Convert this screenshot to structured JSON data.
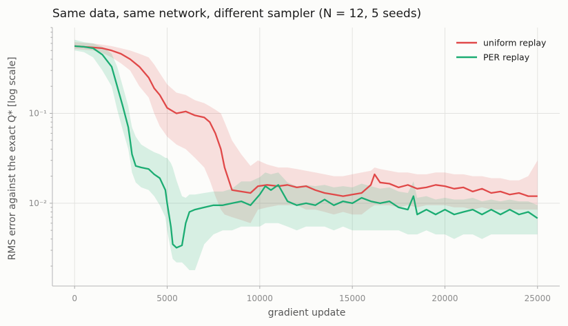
{
  "chart_data": {
    "type": "line",
    "title": "Same data, same network, different sampler (N = 12, 5 seeds)",
    "xlabel": "gradient update",
    "ylabel": "RMS error against the exact Q*  [log scale]",
    "xlim": [
      -1200,
      26200
    ],
    "ylim": [
      0.0012,
      0.9
    ],
    "yscale": "log",
    "x_ticks": [
      0,
      5000,
      10000,
      15000,
      20000,
      25000
    ],
    "y_ticks": [
      {
        "value": 0.1,
        "label": "10⁻¹"
      },
      {
        "value": 0.01,
        "label": "10⁻²"
      }
    ],
    "grid": true,
    "legend_position": "top-right",
    "series": [
      {
        "name": "uniform replay",
        "color": "#e04848",
        "x": [
          0,
          1000,
          1500,
          2000,
          2500,
          3000,
          3500,
          4000,
          4300,
          4600,
          5000,
          5500,
          6000,
          6500,
          7000,
          7300,
          7600,
          7900,
          8100,
          8500,
          9000,
          9500,
          9900,
          10400,
          11000,
          11500,
          12000,
          12500,
          13000,
          13500,
          14000,
          14500,
          15000,
          15500,
          16000,
          16200,
          16500,
          17000,
          17500,
          18000,
          18500,
          19000,
          19500,
          20000,
          20500,
          21000,
          21500,
          22000,
          22500,
          23000,
          23500,
          24000,
          24500,
          25000
        ],
        "y": [
          0.56,
          0.54,
          0.53,
          0.5,
          0.46,
          0.4,
          0.33,
          0.25,
          0.19,
          0.16,
          0.115,
          0.1,
          0.105,
          0.095,
          0.09,
          0.08,
          0.06,
          0.04,
          0.025,
          0.014,
          0.0135,
          0.013,
          0.0155,
          0.016,
          0.0155,
          0.016,
          0.015,
          0.0155,
          0.014,
          0.013,
          0.0125,
          0.012,
          0.0125,
          0.013,
          0.016,
          0.021,
          0.017,
          0.0165,
          0.015,
          0.016,
          0.0145,
          0.015,
          0.016,
          0.0155,
          0.0145,
          0.015,
          0.0135,
          0.0145,
          0.013,
          0.0135,
          0.0125,
          0.013,
          0.012,
          0.012
        ],
        "band_low": [
          0.52,
          0.5,
          0.47,
          0.42,
          0.36,
          0.3,
          0.2,
          0.15,
          0.1,
          0.072,
          0.055,
          0.045,
          0.04,
          0.032,
          0.025,
          0.018,
          0.012,
          0.0085,
          0.0075,
          0.007,
          0.0065,
          0.006,
          0.0085,
          0.009,
          0.0095,
          0.0095,
          0.0095,
          0.0085,
          0.0085,
          0.008,
          0.0075,
          0.008,
          0.0075,
          0.0075,
          0.009,
          0.0095,
          0.0095,
          0.0095,
          0.009,
          0.0095,
          0.009,
          0.0095,
          0.0095,
          0.0095,
          0.009,
          0.009,
          0.0085,
          0.009,
          0.0085,
          0.0085,
          0.0085,
          0.0085,
          0.0085,
          0.0085
        ],
        "band_high": [
          0.62,
          0.6,
          0.58,
          0.56,
          0.53,
          0.5,
          0.46,
          0.42,
          0.35,
          0.28,
          0.21,
          0.17,
          0.16,
          0.14,
          0.13,
          0.12,
          0.11,
          0.1,
          0.08,
          0.05,
          0.035,
          0.026,
          0.03,
          0.027,
          0.025,
          0.025,
          0.024,
          0.023,
          0.022,
          0.021,
          0.02,
          0.02,
          0.021,
          0.022,
          0.023,
          0.025,
          0.024,
          0.023,
          0.022,
          0.022,
          0.021,
          0.021,
          0.022,
          0.022,
          0.021,
          0.021,
          0.02,
          0.02,
          0.019,
          0.019,
          0.018,
          0.018,
          0.02,
          0.03
        ]
      },
      {
        "name": "PER replay",
        "color": "#1bac72",
        "x": [
          0,
          500,
          1000,
          1500,
          2000,
          2300,
          2600,
          2900,
          3000,
          3100,
          3300,
          3600,
          4000,
          4300,
          4600,
          4900,
          5000,
          5200,
          5300,
          5500,
          5800,
          6000,
          6200,
          6500,
          7000,
          7500,
          8000,
          8500,
          9000,
          9500,
          10000,
          10300,
          10600,
          11000,
          11500,
          12000,
          12500,
          13000,
          13500,
          14000,
          14500,
          15000,
          15500,
          16000,
          16500,
          17000,
          17500,
          18000,
          18300,
          18500,
          19000,
          19500,
          20000,
          20500,
          21000,
          21500,
          22000,
          22500,
          23000,
          23500,
          24000,
          24500,
          25000
        ],
        "y": [
          0.56,
          0.55,
          0.53,
          0.45,
          0.33,
          0.2,
          0.12,
          0.07,
          0.05,
          0.035,
          0.026,
          0.025,
          0.024,
          0.021,
          0.019,
          0.014,
          0.01,
          0.0055,
          0.0035,
          0.0032,
          0.0034,
          0.006,
          0.008,
          0.0085,
          0.009,
          0.0095,
          0.0095,
          0.01,
          0.0105,
          0.0095,
          0.0125,
          0.0155,
          0.014,
          0.016,
          0.0105,
          0.0095,
          0.01,
          0.0095,
          0.011,
          0.0095,
          0.0105,
          0.01,
          0.0115,
          0.0105,
          0.01,
          0.0105,
          0.009,
          0.0085,
          0.012,
          0.0075,
          0.0085,
          0.0075,
          0.0085,
          0.0075,
          0.008,
          0.0085,
          0.0075,
          0.0085,
          0.0075,
          0.0085,
          0.0075,
          0.008,
          0.0068
        ],
        "band_low": [
          0.5,
          0.48,
          0.42,
          0.3,
          0.2,
          0.11,
          0.065,
          0.04,
          0.03,
          0.022,
          0.017,
          0.015,
          0.014,
          0.012,
          0.0095,
          0.007,
          0.005,
          0.003,
          0.0024,
          0.0022,
          0.0022,
          0.002,
          0.0018,
          0.0018,
          0.0035,
          0.0045,
          0.005,
          0.005,
          0.0055,
          0.0055,
          0.0055,
          0.006,
          0.006,
          0.006,
          0.0055,
          0.005,
          0.0055,
          0.0055,
          0.0055,
          0.005,
          0.0055,
          0.005,
          0.005,
          0.005,
          0.005,
          0.005,
          0.005,
          0.0045,
          0.0045,
          0.0045,
          0.005,
          0.0045,
          0.0045,
          0.004,
          0.0045,
          0.0045,
          0.004,
          0.0045,
          0.0045,
          0.0045,
          0.0045,
          0.0045,
          0.0045
        ],
        "band_high": [
          0.66,
          0.62,
          0.6,
          0.55,
          0.46,
          0.33,
          0.2,
          0.12,
          0.09,
          0.07,
          0.055,
          0.045,
          0.04,
          0.037,
          0.035,
          0.032,
          0.032,
          0.028,
          0.025,
          0.018,
          0.012,
          0.0115,
          0.0125,
          0.0125,
          0.013,
          0.0135,
          0.0135,
          0.0145,
          0.0175,
          0.0175,
          0.0195,
          0.022,
          0.021,
          0.022,
          0.017,
          0.0155,
          0.016,
          0.0155,
          0.016,
          0.015,
          0.0155,
          0.015,
          0.0165,
          0.0155,
          0.0145,
          0.015,
          0.0135,
          0.013,
          0.0175,
          0.0115,
          0.012,
          0.011,
          0.0115,
          0.011,
          0.011,
          0.0115,
          0.0105,
          0.011,
          0.0105,
          0.011,
          0.0105,
          0.0105,
          0.0095
        ]
      }
    ]
  }
}
